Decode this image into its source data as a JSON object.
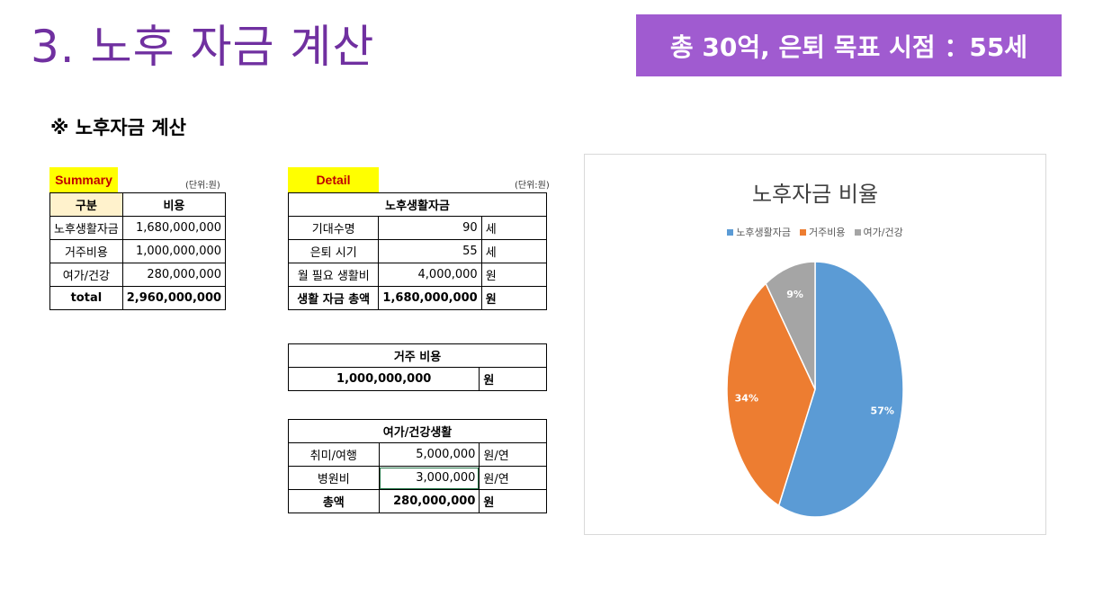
{
  "slide": {
    "title": "3. 노후 자금 계산",
    "goal_banner": "총 30억, 은퇴 목표 시점 ：55세",
    "section_title": "※ 노후자금 계산"
  },
  "summary": {
    "tag": "Summary",
    "unit": "(단위:원)",
    "header": {
      "col1": "구분",
      "col2": "비용"
    },
    "rows": [
      {
        "label": "노후생활자금",
        "value": "1,680,000,000"
      },
      {
        "label": "거주비용",
        "value": "1,000,000,000"
      },
      {
        "label": "여가/건강",
        "value": "280,000,000"
      }
    ],
    "total": {
      "label": "total",
      "value": "2,960,000,000"
    }
  },
  "detail": {
    "tag": "Detail",
    "unit": "(단위:원)",
    "living": {
      "title": "노후생활자금",
      "rows": [
        {
          "label": "기대수명",
          "value": "90",
          "unit": "세"
        },
        {
          "label": "은퇴 시기",
          "value": "55",
          "unit": "세"
        },
        {
          "label": "월 필요 생활비",
          "value": "4,000,000",
          "unit": "원"
        }
      ],
      "total": {
        "label": "생활 자금 총액",
        "value": "1,680,000,000",
        "unit": "원"
      }
    },
    "housing": {
      "title": "거주 비용",
      "value": "1,000,000,000",
      "unit": "원"
    },
    "leisure": {
      "title": "여가/건강생활",
      "rows": [
        {
          "label": "취미/여행",
          "value": "5,000,000",
          "unit": "원/연"
        },
        {
          "label": "병원비",
          "value": "3,000,000",
          "unit": "원/연"
        }
      ],
      "total": {
        "label": "총액",
        "value": "280,000,000",
        "unit": "원"
      }
    }
  },
  "chart_data": {
    "type": "pie",
    "title": "노후자금 비율",
    "legend_position": "top",
    "categories": [
      "노후생활자금",
      "거주비용",
      "여가/건강"
    ],
    "values": [
      1680000000,
      1000000000,
      280000000
    ],
    "labels": [
      "57%",
      "34%",
      "9%"
    ],
    "colors": [
      "#5b9bd5",
      "#ed7d31",
      "#a5a5a5"
    ]
  }
}
